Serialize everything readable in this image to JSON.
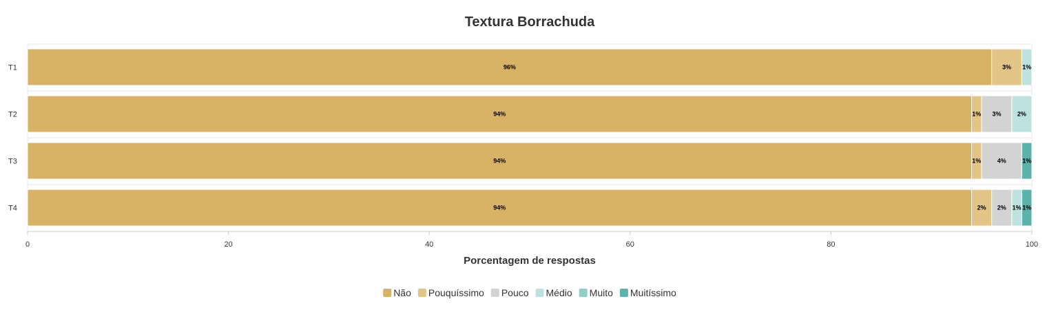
{
  "chart_data": {
    "type": "bar",
    "orientation": "horizontal",
    "stacked": true,
    "title": "Textura Borrachuda",
    "xlabel": "Porcentagem de respostas",
    "ylabel": "",
    "xlim": [
      0,
      100
    ],
    "x_ticks": [
      "0",
      "20",
      "40",
      "60",
      "80",
      "100"
    ],
    "categories": [
      "T1",
      "T2",
      "T3",
      "T4"
    ],
    "legend_position": "bottom",
    "grid": false,
    "series": [
      {
        "name": "Não",
        "color": "#d8b366",
        "values": [
          96,
          94,
          94,
          94
        ],
        "labels": [
          "96%",
          "94%",
          "94%",
          "94%"
        ]
      },
      {
        "name": "Pouquíssimo",
        "color": "#e2c587",
        "values": [
          3,
          1,
          1,
          2
        ],
        "labels": [
          "3%",
          "1%",
          "1%",
          "2%"
        ]
      },
      {
        "name": "Pouco",
        "color": "#d3d3d3",
        "values": [
          0,
          3,
          4,
          2
        ],
        "labels": [
          "",
          "3%",
          "4%",
          "2%"
        ]
      },
      {
        "name": "Médio",
        "color": "#bde2e0",
        "values": [
          1,
          2,
          0,
          1
        ],
        "labels": [
          "1%",
          "2%",
          "",
          "1%"
        ]
      },
      {
        "name": "Muito",
        "color": "#8fcdc6",
        "values": [
          0,
          0,
          0,
          0
        ],
        "labels": [
          "",
          "",
          "",
          ""
        ]
      },
      {
        "name": "Muitíssimo",
        "color": "#5db3aa",
        "values": [
          0,
          0,
          1,
          1
        ],
        "labels": [
          "",
          "",
          "1%",
          "1%"
        ]
      }
    ]
  }
}
